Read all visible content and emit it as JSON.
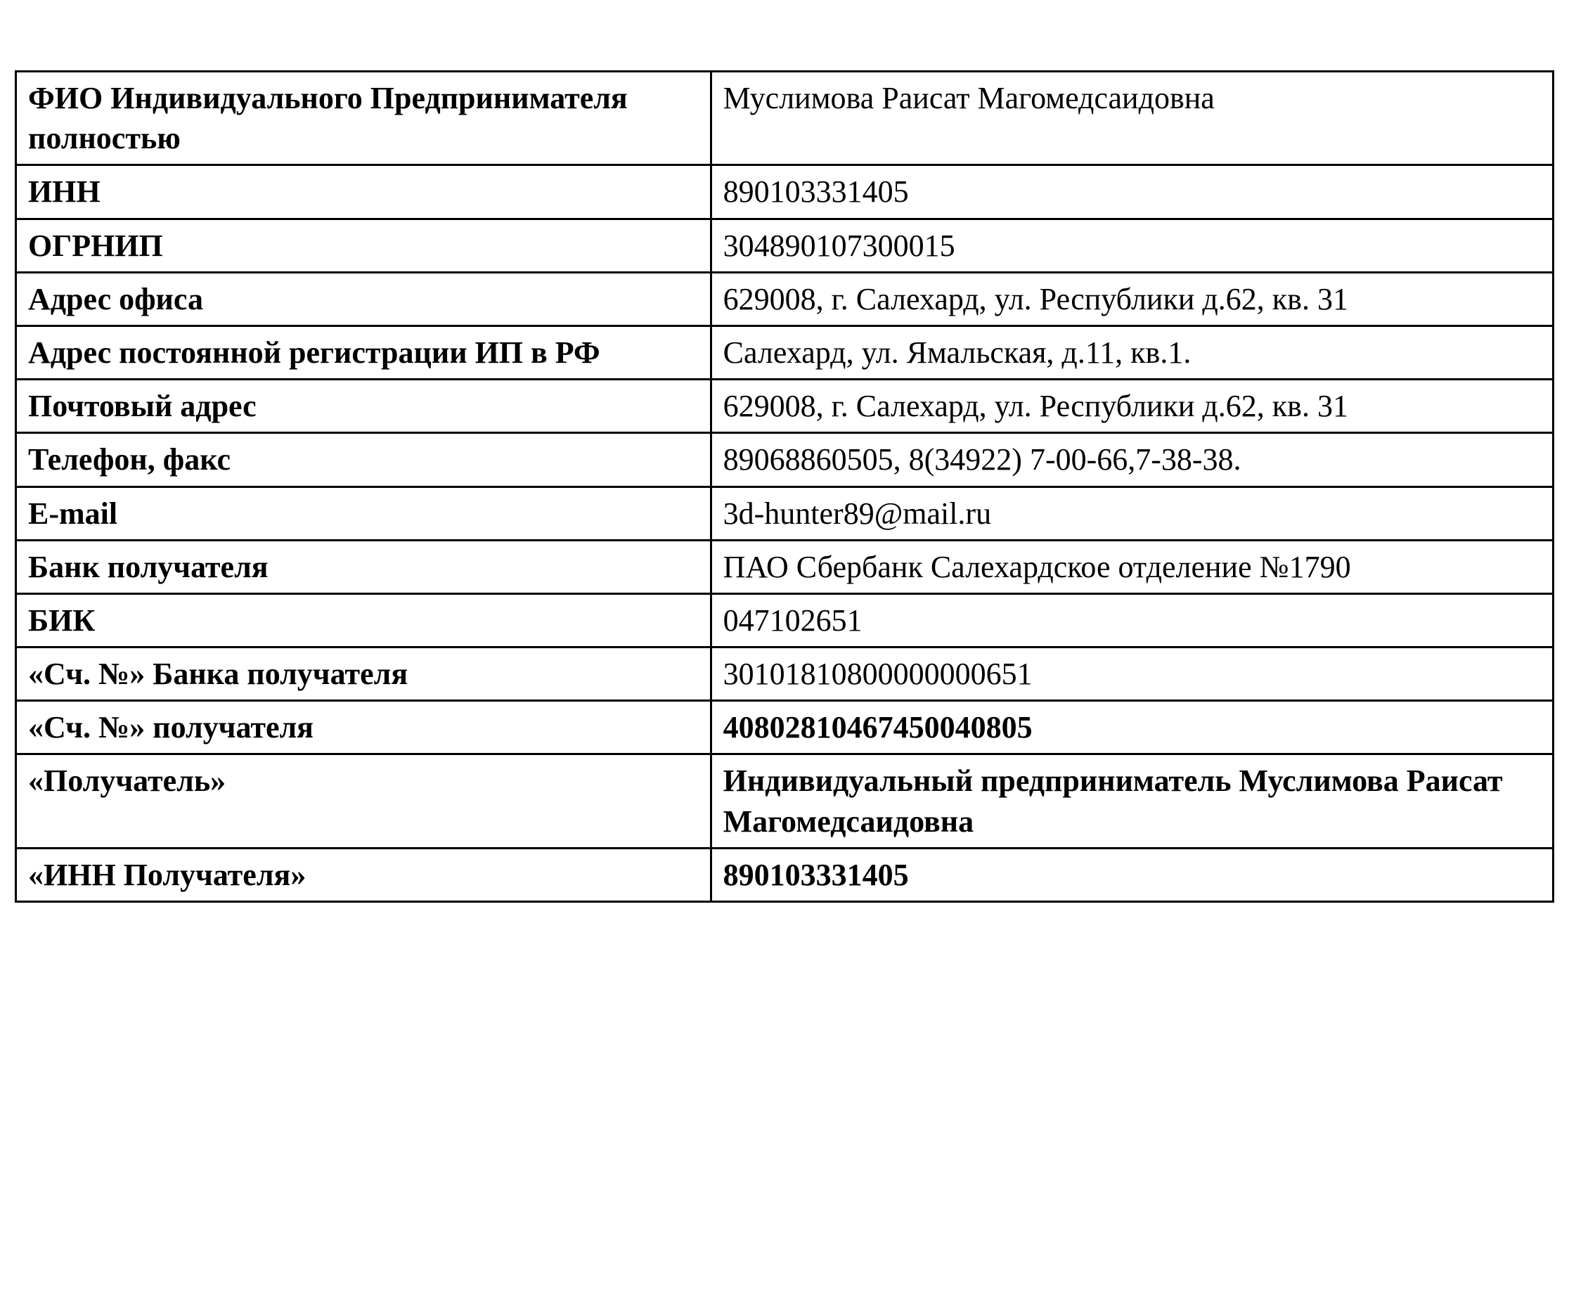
{
  "table": {
    "rows": [
      {
        "label": "ФИО Индивидуального Предпринимателя полностью",
        "value": "Муслимова Раисат Магомедсаидовна",
        "bold": false
      },
      {
        "label": "ИНН",
        "value": "890103331405",
        "bold": false
      },
      {
        "label": "ОГРНИП",
        "value": "304890107300015",
        "bold": false
      },
      {
        "label": "Адрес офиса",
        "value": "629008, г. Салехард, ул. Республики д.62, кв. 31",
        "bold": false
      },
      {
        "label": "Адрес постоянной регистрации ИП в РФ",
        "value": "Салехард, ул. Ямальская,  д.11, кв.1.",
        "bold": false
      },
      {
        "label": "Почтовый адрес",
        "value": "629008, г. Салехард, ул. Республики д.62, кв. 31",
        "bold": false
      },
      {
        "label": "Телефон, факс",
        "value": "89068860505, 8(34922) 7-00-66,7-38-38.",
        "bold": false
      },
      {
        "label": "E-mail",
        "value": "3d-hunter89@mail.ru",
        "bold": false
      },
      {
        "label": "Банк получателя",
        "value": "ПАО Сбербанк Салехардское отделение №1790",
        "bold": false
      },
      {
        "label": "БИК",
        "value": "047102651",
        "bold": false
      },
      {
        "label": "«Сч. №» Банка получателя",
        "value": "30101810800000000651",
        "bold": false
      },
      {
        "label": "«Сч. №» получателя",
        "value": "40802810467450040805",
        "bold": true
      },
      {
        "label": "«Получатель»",
        "value": "Индивидуальный предприниматель Муслимова Раисат Магомедсаидовна",
        "bold": true
      },
      {
        "label": "«ИНН Получателя»",
        "value": "890103331405",
        "bold": true
      }
    ],
    "border_color": "#000000",
    "text_color": "#000000",
    "background_color": "#ffffff",
    "label_fontsize": 44,
    "value_fontsize": 44,
    "label_col_width": 990,
    "value_col_width": 1200
  }
}
